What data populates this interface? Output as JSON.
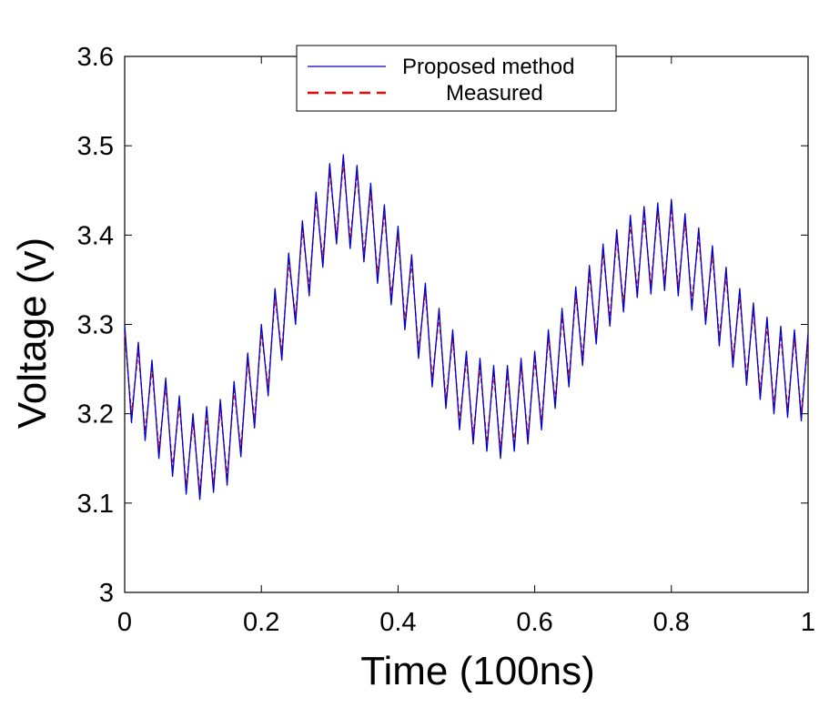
{
  "chart_data": {
    "type": "line",
    "title": "",
    "xlabel": "Time (100ns)",
    "ylabel": "Voltage (v)",
    "xlim": [
      0,
      1
    ],
    "ylim": [
      3,
      3.6
    ],
    "xticks": [
      "0",
      "0.2",
      "0.4",
      "0.6",
      "0.8",
      "1"
    ],
    "yticks": [
      "3",
      "3.1",
      "3.2",
      "3.3",
      "3.4",
      "3.5",
      "3.6"
    ],
    "grid": false,
    "legend_position": "top-center",
    "x_step": 0.01,
    "series": [
      {
        "name": "Proposed method",
        "color": "#0000cc",
        "style": "solid",
        "values": [
          3.3,
          3.19,
          3.28,
          3.17,
          3.26,
          3.15,
          3.24,
          3.13,
          3.22,
          3.11,
          3.2,
          3.104,
          3.208,
          3.112,
          3.216,
          3.12,
          3.236,
          3.152,
          3.268,
          3.184,
          3.3,
          3.22,
          3.34,
          3.26,
          3.38,
          3.3,
          3.416,
          3.332,
          3.448,
          3.364,
          3.48,
          3.39,
          3.49,
          3.385,
          3.478,
          3.37,
          3.458,
          3.346,
          3.434,
          3.322,
          3.41,
          3.294,
          3.378,
          3.262,
          3.346,
          3.23,
          3.318,
          3.206,
          3.294,
          3.182,
          3.27,
          3.166,
          3.262,
          3.158,
          3.254,
          3.15,
          3.254,
          3.158,
          3.262,
          3.166,
          3.27,
          3.182,
          3.294,
          3.206,
          3.318,
          3.23,
          3.342,
          3.254,
          3.366,
          3.278,
          3.39,
          3.298,
          3.406,
          3.314,
          3.422,
          3.33,
          3.432,
          3.334,
          3.436,
          3.338,
          3.44,
          3.332,
          3.424,
          3.316,
          3.408,
          3.3,
          3.388,
          3.276,
          3.364,
          3.252,
          3.34,
          3.232,
          3.324,
          3.216,
          3.308,
          3.2,
          3.298,
          3.196,
          3.294,
          3.192,
          3.29
        ]
      },
      {
        "name": "Measured",
        "color": "#ff0000",
        "style": "dashed",
        "values": [
          3.29,
          3.2,
          3.27,
          3.18,
          3.25,
          3.16,
          3.23,
          3.14,
          3.21,
          3.12,
          3.19,
          3.114,
          3.198,
          3.122,
          3.206,
          3.13,
          3.226,
          3.162,
          3.258,
          3.194,
          3.29,
          3.23,
          3.33,
          3.27,
          3.37,
          3.31,
          3.406,
          3.342,
          3.438,
          3.374,
          3.47,
          3.4,
          3.48,
          3.395,
          3.468,
          3.38,
          3.448,
          3.356,
          3.424,
          3.332,
          3.4,
          3.304,
          3.368,
          3.272,
          3.336,
          3.24,
          3.308,
          3.216,
          3.284,
          3.192,
          3.26,
          3.176,
          3.252,
          3.168,
          3.244,
          3.16,
          3.244,
          3.168,
          3.252,
          3.176,
          3.26,
          3.192,
          3.284,
          3.216,
          3.308,
          3.24,
          3.332,
          3.264,
          3.356,
          3.288,
          3.38,
          3.308,
          3.396,
          3.324,
          3.412,
          3.34,
          3.422,
          3.344,
          3.426,
          3.348,
          3.43,
          3.342,
          3.414,
          3.326,
          3.398,
          3.31,
          3.378,
          3.286,
          3.354,
          3.262,
          3.33,
          3.242,
          3.314,
          3.226,
          3.298,
          3.21,
          3.288,
          3.206,
          3.284,
          3.202,
          3.28
        ]
      }
    ]
  }
}
